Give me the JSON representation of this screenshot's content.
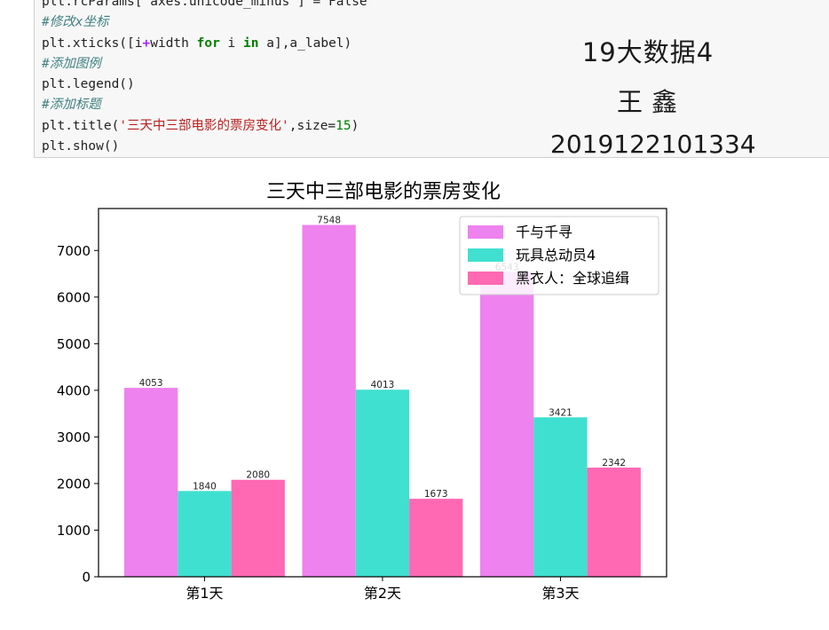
{
  "code": {
    "lines": [
      {
        "type": "partial",
        "text": "plt.rcParams['axes.unicode_minus'] = False"
      },
      {
        "type": "comment",
        "text": "#修改x坐标"
      },
      {
        "type": "xticks",
        "a": "plt.xticks([i",
        "op": "+",
        "b": "width ",
        "for": "for",
        "c": " i ",
        "in": "in",
        "d": " a],a_label)"
      },
      {
        "type": "comment",
        "text": "#添加图例"
      },
      {
        "type": "plain",
        "text": "plt.legend()"
      },
      {
        "type": "comment",
        "text": "#添加标题"
      },
      {
        "type": "title",
        "a": "plt.title(",
        "s": "'三天中三部电影的票房变化'",
        "b": ",size=",
        "n": "15",
        "c": ")"
      },
      {
        "type": "plain",
        "text": "plt.show()"
      }
    ]
  },
  "annotation": {
    "class_name": "19大数据4",
    "student_name": "王鑫",
    "student_id": "2019122101334"
  },
  "colors": {
    "series": [
      "#ee82ee",
      "#40e0d0",
      "#ff69b4"
    ],
    "axis": "#000000"
  },
  "chart_data": {
    "type": "bar",
    "title": "三天中三部电影的票房变化",
    "categories": [
      "第1天",
      "第2天",
      "第3天"
    ],
    "series": [
      {
        "name": "千与千寻",
        "values": [
          4053,
          7548,
          6543
        ]
      },
      {
        "name": "玩具总动员4",
        "values": [
          1840,
          4013,
          3421
        ]
      },
      {
        "name": "黑衣人：全球追缉",
        "values": [
          2080,
          1673,
          2342
        ]
      }
    ],
    "yticks": [
      0,
      1000,
      2000,
      3000,
      4000,
      5000,
      6000,
      7000
    ],
    "ylim": [
      0,
      7900
    ],
    "legend_position": "top-right",
    "grid": false
  }
}
